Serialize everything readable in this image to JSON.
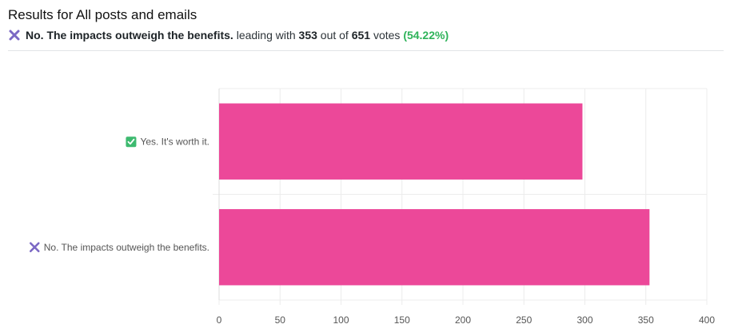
{
  "header": {
    "title": "Results for All posts and emails",
    "leading_answer": "No. The impacts outweigh the benefits.",
    "leading_with_text": "leading with",
    "leading_votes": "353",
    "out_of_text": "out of",
    "total_votes": "651",
    "votes_text": "votes",
    "leading_percent": "(54.22%)"
  },
  "colors": {
    "bar": "#ec4899",
    "check": "#3dba6f",
    "cross": "#7b68c4",
    "percent": "#2fb35a"
  },
  "chart_data": {
    "type": "bar",
    "orientation": "horizontal",
    "categories": [
      "Yes. It's worth it.",
      "No. The impacts outweigh the benefits."
    ],
    "category_icons": [
      "check-icon",
      "cross-icon"
    ],
    "values": [
      298,
      353
    ],
    "xlim": [
      0,
      400
    ],
    "xticks": [
      0,
      50,
      100,
      150,
      200,
      250,
      300,
      350,
      400
    ],
    "grid": true
  }
}
